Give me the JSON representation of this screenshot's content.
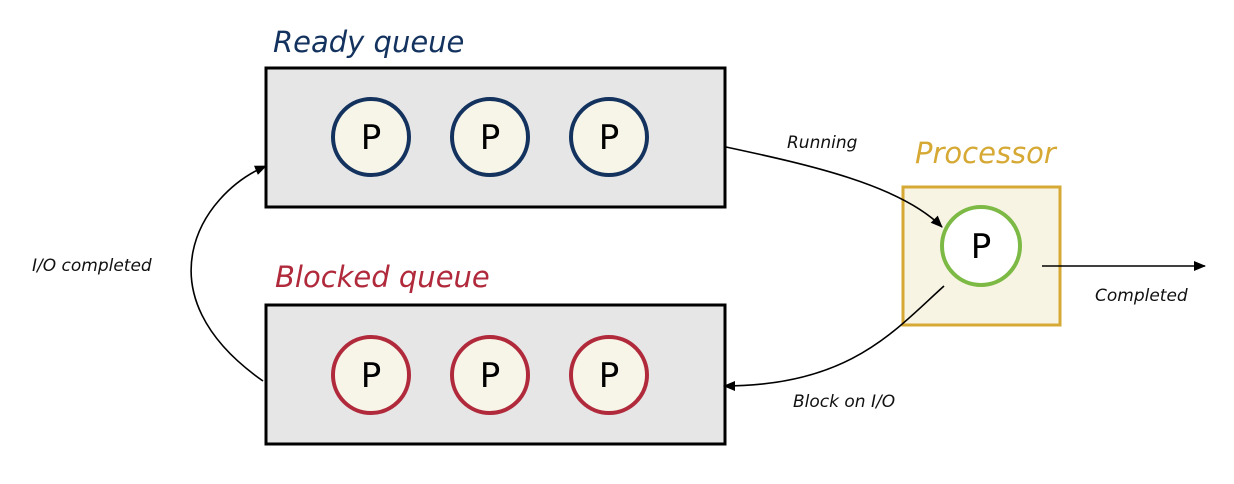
{
  "colors": {
    "ready": "#13325e",
    "blocked": "#b02a3c",
    "processor": "#d6a935",
    "running_process": "#7dba45",
    "queue_fill": "#e6e6e6",
    "queue_border": "#000000",
    "process_fill": "#f7f4e8",
    "processor_fill": "#f8f4e3",
    "edge": "#000000"
  },
  "ready_queue": {
    "title": "Ready queue",
    "processes": [
      "P",
      "P",
      "P"
    ]
  },
  "blocked_queue": {
    "title": "Blocked queue",
    "processes": [
      "P",
      "P",
      "P"
    ]
  },
  "processor": {
    "title": "Processor",
    "process": "P"
  },
  "edges": {
    "running": "Running",
    "completed": "Completed",
    "block_on_io": "Block on I/O",
    "io_completed": "I/O completed"
  }
}
